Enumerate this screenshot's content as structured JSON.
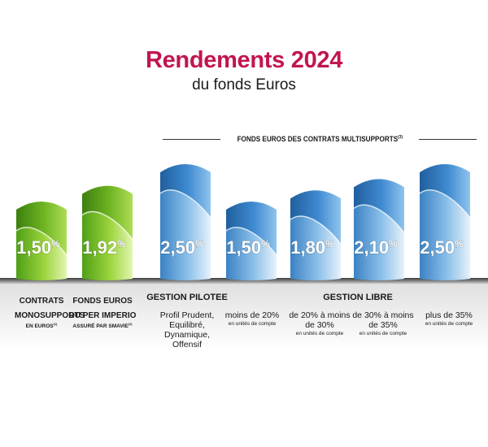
{
  "header": {
    "title": "Rendements 2024",
    "subtitle": "du fonds Euros",
    "section_heading": "FONDS EUROS DES CONTRATS MULTISUPPORTS",
    "section_heading_sup": "(3)"
  },
  "colors": {
    "title": "#c2154f",
    "green_dark": "#3f8f12",
    "green_light": "#b9e35a",
    "blue_dark": "#2a6fb3",
    "blue_light": "#cfe5f7"
  },
  "chart_data": {
    "type": "bar",
    "categories": [
      "CONTRATS MONOSUPPORTS EN EUROS",
      "FONDS EUROS DU PER IMPERIO ASSURÉ PAR SMAVIE",
      "Profil Prudent, Equilibré, Dynamique, Offensif",
      "moins de 20% en unités de compte",
      "de 20% à moins de 30% en unités de compte",
      "de 30% à moins de 35% en unités de compte",
      "plus de 35% en unités de compte"
    ],
    "values": [
      1.5,
      1.92,
      2.5,
      1.5,
      1.8,
      2.1,
      2.5
    ],
    "value_labels": [
      "1,50",
      "1,92",
      "2,50",
      "1,50",
      "1,80",
      "2,10",
      "2,50"
    ],
    "unit": "%",
    "bar_colors": [
      "green",
      "green",
      "blue",
      "blue",
      "blue",
      "blue",
      "blue"
    ],
    "ylim": [
      0,
      2.5
    ]
  },
  "captions": [
    {
      "bold": "CONTRATS MONOSUPPORTS",
      "small": "EN EUROS",
      "sup": "(1)"
    },
    {
      "bold": "FONDS EUROS DU PER IMPERIO",
      "small": "ASSURÉ PAR SMAVIE",
      "sup": "(2)"
    },
    {
      "text": "Profil Prudent, Equilibré, Dynamique, Offensif",
      "tiny": ""
    },
    {
      "text": "moins de 20%",
      "tiny": "en unités de compte"
    },
    {
      "text": "de 20% à moins de 30%",
      "tiny": "en unités de compte"
    },
    {
      "text": "de 30% à moins de 35%",
      "tiny": "en unités de compte"
    },
    {
      "text": "plus de 35%",
      "tiny": "en unités de compte"
    }
  ],
  "groups": {
    "pilotee": "GESTION PILOTEE",
    "libre": "GESTION LIBRE"
  }
}
